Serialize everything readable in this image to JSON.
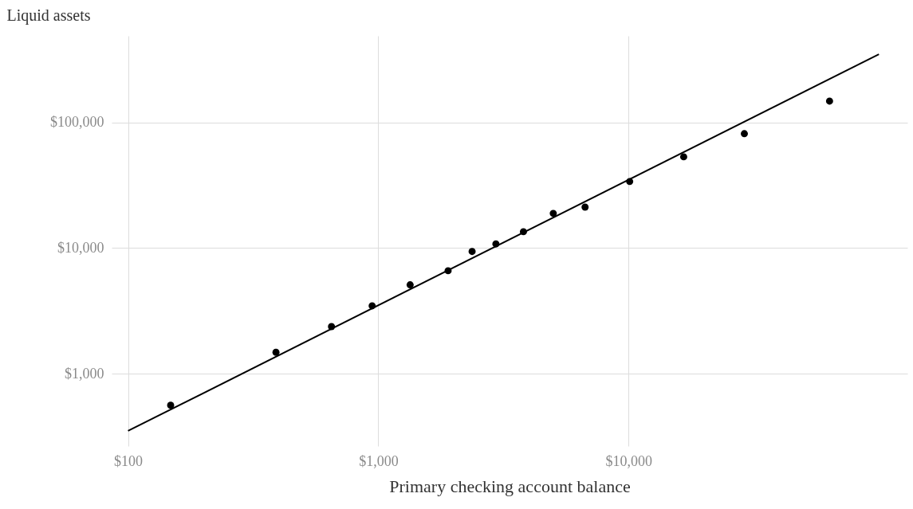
{
  "chart_data": {
    "type": "scatter",
    "xlabel": "Primary checking account balance",
    "ylabel": "Liquid assets",
    "log": "xy",
    "grid": true,
    "xlim": [
      86,
      130000
    ],
    "ylim": [
      265,
      490000
    ],
    "xticks": [
      {
        "value": 100,
        "label": "$100"
      },
      {
        "value": 1000,
        "label": "$1,000"
      },
      {
        "value": 10000,
        "label": "$10,000"
      }
    ],
    "yticks": [
      {
        "value": 1000,
        "label": "$1,000"
      },
      {
        "value": 10000,
        "label": "$10,000"
      },
      {
        "value": 100000,
        "label": "$100,000"
      }
    ],
    "series": [
      {
        "marker": "circle",
        "color": "#000000",
        "x": [
          148,
          390,
          650,
          945,
          1340,
          1900,
          2370,
          2950,
          3800,
          5000,
          6700,
          10100,
          16600,
          29000,
          63500
        ],
        "values": [
          560,
          1480,
          2370,
          3470,
          5100,
          6600,
          9400,
          10800,
          13500,
          18900,
          21200,
          33900,
          53300,
          81500,
          148000
        ]
      },
      {
        "type": "line",
        "color": "#000000",
        "x": [
          100,
          100000
        ],
        "values": [
          350,
          350000
        ]
      }
    ]
  }
}
